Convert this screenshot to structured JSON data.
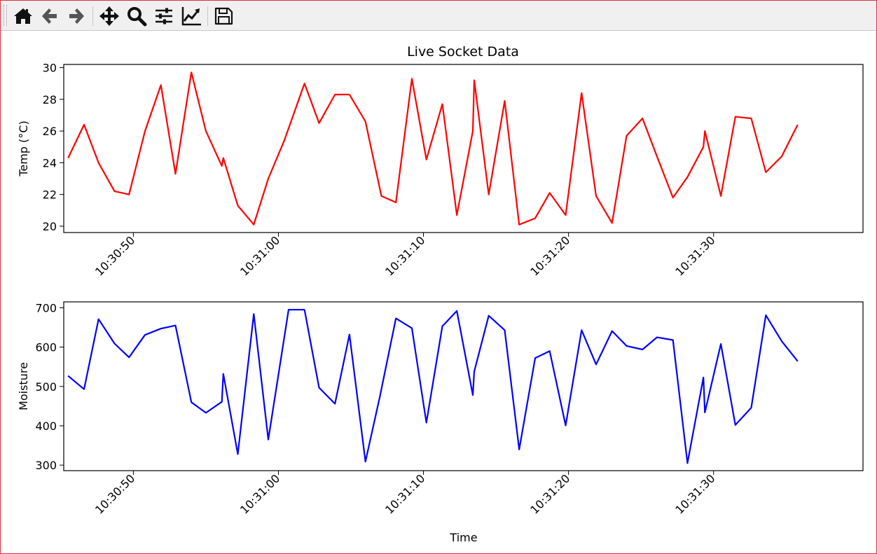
{
  "toolbar": {
    "buttons": [
      {
        "name": "home-icon"
      },
      {
        "name": "back-arrow-icon"
      },
      {
        "name": "forward-arrow-icon"
      },
      {
        "name": "pan-move-icon"
      },
      {
        "name": "zoom-magnifier-icon"
      },
      {
        "name": "configure-subplots-icon"
      },
      {
        "name": "edit-axis-curves-icon"
      },
      {
        "name": "save-floppy-icon"
      }
    ]
  },
  "figure": {
    "title": "Live Socket Data",
    "xlabel": "Time"
  },
  "chart_data": [
    {
      "type": "line",
      "title": "Live Socket Data",
      "xlabel": "",
      "ylabel": "Temp (°C)",
      "color": "#ff0000",
      "xlim": [
        "10:30:45.2",
        "10:31:40.3"
      ],
      "ylim": [
        19.6,
        30.2
      ],
      "xticks": [
        "10:30:50",
        "10:31:00",
        "10:31:10",
        "10:31:20",
        "10:31:30"
      ],
      "yticks": [
        20,
        22,
        24,
        26,
        28,
        30
      ],
      "x": [
        "10:30:45.5",
        "10:30:46.6",
        "10:30:47.6",
        "10:30:48.7",
        "10:30:49.7",
        "10:30:50.8",
        "10:30:51.9",
        "10:30:52.9",
        "10:30:54.0",
        "10:30:55.0",
        "10:30:56.1",
        "10:30:56.2",
        "10:30:57.2",
        "10:30:58.3",
        "10:30:59.3",
        "10:31:00.4",
        "10:31:01.8",
        "10:31:02.8",
        "10:31:03.9",
        "10:31:04.9",
        "10:31:06.0",
        "10:31:07.1",
        "10:31:08.1",
        "10:31:09.2",
        "10:31:10.2",
        "10:31:11.3",
        "10:31:12.3",
        "10:31:13.4",
        "10:31:13.5",
        "10:31:14.5",
        "10:31:15.6",
        "10:31:16.6",
        "10:31:17.7",
        "10:31:18.7",
        "10:31:19.8",
        "10:31:20.9",
        "10:31:21.9",
        "10:31:23.0",
        "10:31:24.0",
        "10:31:25.1",
        "10:31:26.1",
        "10:31:27.2",
        "10:31:28.2",
        "10:31:29.3",
        "10:31:29.4",
        "10:31:30.5",
        "10:31:31.5",
        "10:31:32.6",
        "10:31:33.6",
        "10:31:34.7",
        "10:31:35.8"
      ],
      "y": [
        24.3,
        26.4,
        24.0,
        22.2,
        22.0,
        26.0,
        28.9,
        23.3,
        29.7,
        26.0,
        23.8,
        24.3,
        21.3,
        20.1,
        23.0,
        25.4,
        29.0,
        26.5,
        28.3,
        28.3,
        26.6,
        21.9,
        21.5,
        29.3,
        24.2,
        27.7,
        20.7,
        26.0,
        29.2,
        22.0,
        27.9,
        20.1,
        20.5,
        22.1,
        20.7,
        28.4,
        21.9,
        20.2,
        25.7,
        26.8,
        24.4,
        21.8,
        23.1,
        25.0,
        26.0,
        21.9,
        26.9,
        26.8,
        23.4,
        24.4,
        26.4
      ]
    },
    {
      "type": "line",
      "title": "",
      "xlabel": "Time",
      "ylabel": "Moisture",
      "color": "#0000ff",
      "xlim": [
        "10:30:45.2",
        "10:31:40.3"
      ],
      "ylim": [
        286,
        715
      ],
      "xticks": [
        "10:30:50",
        "10:31:00",
        "10:31:10",
        "10:31:20",
        "10:31:30"
      ],
      "yticks": [
        300,
        400,
        500,
        600,
        700
      ],
      "x": [
        "10:30:45.5",
        "10:30:46.6",
        "10:30:47.6",
        "10:30:48.7",
        "10:30:49.7",
        "10:30:50.8",
        "10:30:51.9",
        "10:30:52.9",
        "10:30:54.0",
        "10:30:55.0",
        "10:30:56.1",
        "10:30:56.2",
        "10:30:57.2",
        "10:30:58.3",
        "10:30:59.3",
        "10:31:00.7",
        "10:31:01.8",
        "10:31:02.8",
        "10:31:03.9",
        "10:31:04.9",
        "10:31:06.0",
        "10:31:07.0",
        "10:31:08.1",
        "10:31:09.2",
        "10:31:10.2",
        "10:31:11.3",
        "10:31:12.3",
        "10:31:13.4",
        "10:31:13.5",
        "10:31:14.5",
        "10:31:15.6",
        "10:31:16.6",
        "10:31:17.7",
        "10:31:18.7",
        "10:31:19.8",
        "10:31:20.9",
        "10:31:21.9",
        "10:31:23.0",
        "10:31:24.0",
        "10:31:25.1",
        "10:31:26.1",
        "10:31:27.2",
        "10:31:28.2",
        "10:31:29.3",
        "10:31:29.4",
        "10:31:30.5",
        "10:31:31.5",
        "10:31:32.6",
        "10:31:33.6",
        "10:31:34.7",
        "10:31:35.8"
      ],
      "y": [
        527,
        493,
        671,
        609,
        574,
        631,
        647,
        655,
        460,
        433,
        461,
        532,
        328,
        684,
        365,
        695,
        695,
        497,
        456,
        632,
        309,
        475,
        673,
        648,
        408,
        653,
        692,
        478,
        538,
        680,
        643,
        340,
        572,
        590,
        401,
        643,
        556,
        641,
        603,
        594,
        625,
        618,
        305,
        523,
        434,
        608,
        402,
        446,
        681,
        615,
        564
      ]
    }
  ]
}
